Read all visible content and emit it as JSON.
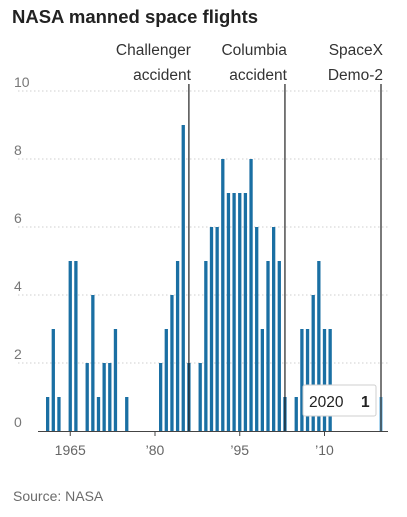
{
  "chart_data": {
    "type": "bar",
    "title": "NASA manned space flights",
    "source": "Source: NASA",
    "ylim": [
      0,
      10
    ],
    "y_ticks": [
      0,
      2,
      4,
      6,
      8,
      10
    ],
    "x_ticks": [
      {
        "year": 1965,
        "label": "1965"
      },
      {
        "year": 1980,
        "label": "’80"
      },
      {
        "year": 1995,
        "label": "’95"
      },
      {
        "year": 2010,
        "label": "’10"
      }
    ],
    "grid": true,
    "bar_color": "#1a6fa3",
    "highlight_color": "#7fc0e8",
    "years": [
      1961,
      1962,
      1963,
      1964,
      1965,
      1966,
      1967,
      1968,
      1969,
      1970,
      1971,
      1972,
      1973,
      1974,
      1975,
      1976,
      1977,
      1978,
      1979,
      1980,
      1981,
      1982,
      1983,
      1984,
      1985,
      1986,
      1987,
      1988,
      1989,
      1990,
      1991,
      1992,
      1993,
      1994,
      1995,
      1996,
      1997,
      1998,
      1999,
      2000,
      2001,
      2002,
      2003,
      2004,
      2005,
      2006,
      2007,
      2008,
      2009,
      2010,
      2011,
      2012,
      2013,
      2014,
      2015,
      2016,
      2017,
      2018,
      2019,
      2020
    ],
    "values": [
      1,
      3,
      1,
      0,
      5,
      5,
      0,
      2,
      4,
      1,
      2,
      2,
      3,
      0,
      1,
      0,
      0,
      0,
      0,
      0,
      2,
      3,
      4,
      5,
      9,
      2,
      0,
      2,
      5,
      6,
      6,
      8,
      7,
      7,
      7,
      7,
      8,
      6,
      3,
      5,
      6,
      5,
      1,
      0,
      1,
      3,
      3,
      4,
      5,
      3,
      3,
      0,
      0,
      0,
      0,
      0,
      0,
      0,
      0,
      1
    ],
    "highlight_year": 2020,
    "annotations": [
      {
        "year": 1986,
        "lines": [
          "Challenger",
          "accident"
        ]
      },
      {
        "year": 2003,
        "lines": [
          "Columbia",
          "accident"
        ]
      },
      {
        "year": 2020,
        "lines": [
          "SpaceX",
          "Demo-2"
        ]
      }
    ],
    "tooltip": {
      "year": "2020",
      "value": "1"
    }
  }
}
